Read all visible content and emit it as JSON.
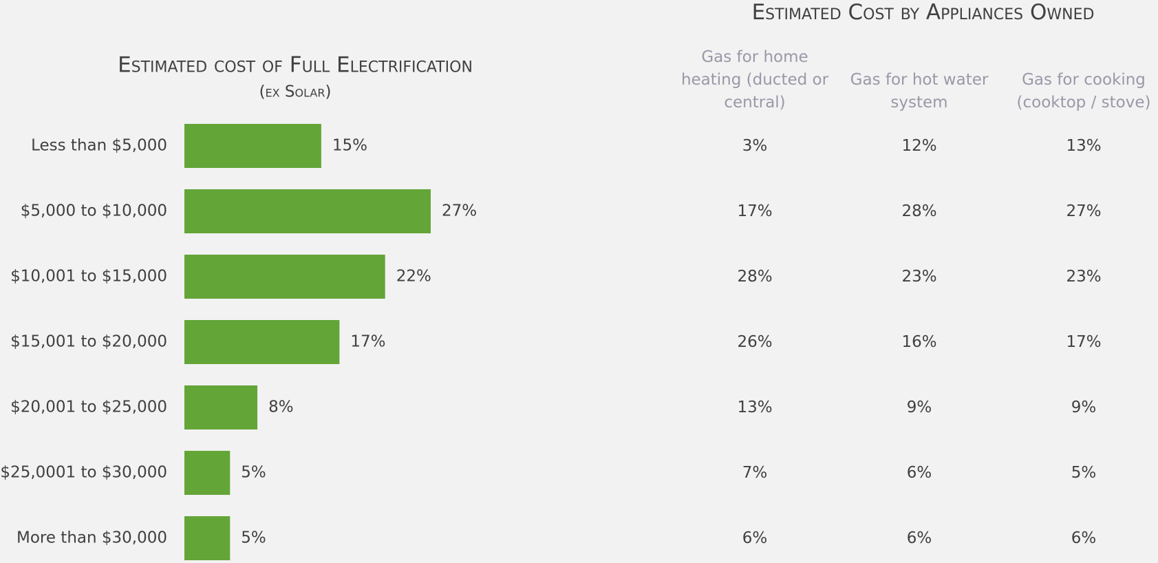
{
  "chart_data": {
    "type": "bar",
    "orientation": "horizontal",
    "title": "Estimated cost of Full Electrification",
    "subtitle": "(ex Solar)",
    "categories": [
      "Less than $5,000",
      "$5,000 to $10,000",
      "$10,001 to $15,000",
      "$15,001 to $20,000",
      "$20,001 to $25,000",
      "$25,0001 to $30,000",
      "More than $30,000"
    ],
    "values": [
      15,
      27,
      22,
      17,
      8,
      5,
      5
    ],
    "value_labels": [
      "15%",
      "27%",
      "22%",
      "17%",
      "8%",
      "5%",
      "5%"
    ],
    "color": "#63a537"
  },
  "table": {
    "title": "Estimated Cost by Appliances Owned",
    "columns": [
      "Gas for home heating (ducted or central)",
      "Gas for hot water system",
      "Gas for cooking (cooktop / stove)"
    ],
    "rows": [
      [
        "3%",
        "12%",
        "13%"
      ],
      [
        "17%",
        "28%",
        "27%"
      ],
      [
        "28%",
        "23%",
        "23%"
      ],
      [
        "26%",
        "16%",
        "17%"
      ],
      [
        "13%",
        "9%",
        "9%"
      ],
      [
        "7%",
        "6%",
        "5%"
      ],
      [
        "6%",
        "6%",
        "6%"
      ]
    ]
  }
}
